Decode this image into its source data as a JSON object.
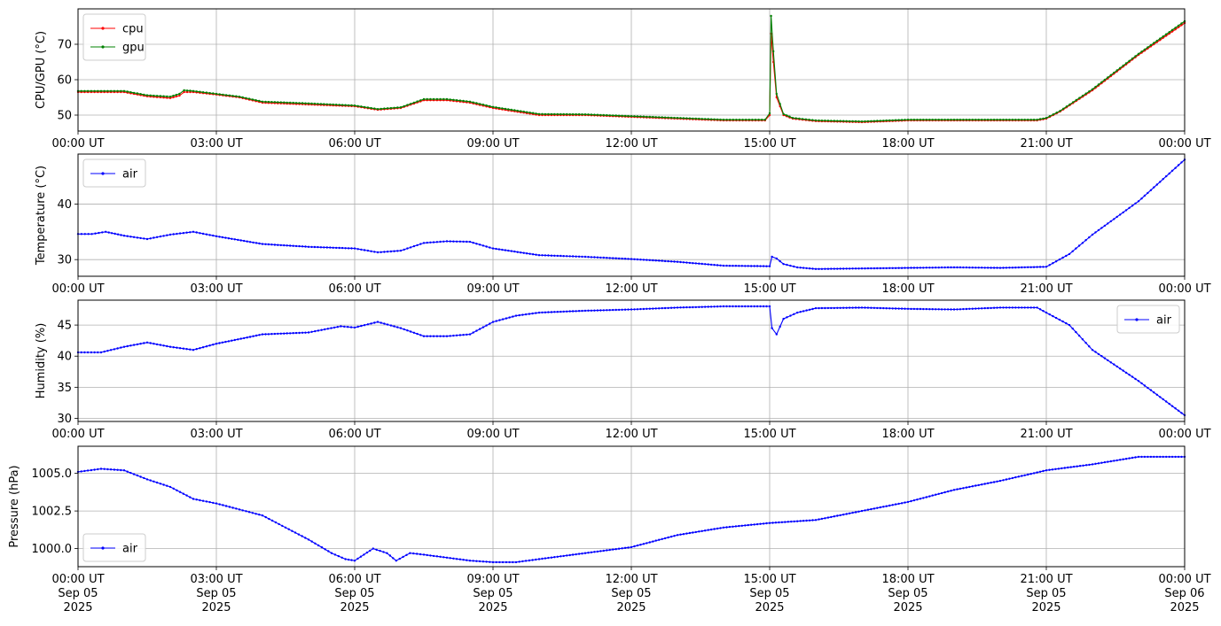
{
  "x_ticks": [
    "00:00 UT",
    "03:00 UT",
    "06:00 UT",
    "09:00 UT",
    "12:00 UT",
    "15:00 UT",
    "18:00 UT",
    "21:00 UT",
    "00:00 UT"
  ],
  "x_date_lines": [
    "Sep 05",
    "Sep 05",
    "Sep 05",
    "Sep 05",
    "Sep 05",
    "Sep 05",
    "Sep 05",
    "Sep 05",
    "Sep 06"
  ],
  "x_year_lines": [
    "2025",
    "2025",
    "2025",
    "2025",
    "2025",
    "2025",
    "2025",
    "2025",
    "2025"
  ],
  "colors": {
    "cpu": "#ff0000",
    "gpu": "#008000",
    "air": "#0000ff",
    "grid": "#b0b0b0"
  },
  "chart_data": [
    {
      "type": "line",
      "ylabel": "CPU/GPU (°C)",
      "xlim": [
        "2025-09-05 00:00",
        "2025-09-06 00:00"
      ],
      "ylim": [
        45.5,
        80
      ],
      "yticks": [
        50,
        60,
        70
      ],
      "grid": true,
      "legend": "top-left",
      "x_hours": [
        0,
        0.5,
        1,
        1.5,
        2,
        2.2,
        2.3,
        2.5,
        3,
        3.5,
        4,
        5,
        6,
        6.5,
        7,
        7.5,
        8,
        8.5,
        9,
        10,
        11,
        12,
        13,
        14,
        14.9,
        15,
        15.03,
        15.08,
        15.15,
        15.3,
        15.5,
        16,
        17,
        18,
        19,
        20,
        20.8,
        21,
        21.3,
        22,
        23,
        24
      ],
      "series": [
        {
          "name": "cpu",
          "values": [
            56.5,
            56.5,
            56.5,
            55.3,
            54.8,
            55.5,
            56.5,
            56.5,
            55.8,
            55,
            53.5,
            53,
            52.5,
            51.5,
            52,
            54.2,
            54.2,
            53.5,
            52,
            50,
            50,
            49.5,
            49,
            48.5,
            48.5,
            50,
            73,
            65,
            55,
            50,
            49,
            48.3,
            48,
            48.5,
            48.5,
            48.5,
            48.5,
            49,
            51,
            57,
            67,
            76
          ]
        },
        {
          "name": "gpu",
          "values": [
            56.8,
            56.8,
            56.8,
            55.6,
            55.2,
            56,
            57,
            56.8,
            56,
            55.2,
            53.8,
            53.3,
            52.7,
            51.7,
            52.2,
            54.5,
            54.5,
            53.8,
            52.3,
            50.3,
            50.2,
            49.7,
            49.2,
            48.7,
            48.7,
            50.5,
            78,
            68,
            56,
            50.3,
            49.2,
            48.5,
            48.2,
            48.7,
            48.7,
            48.7,
            48.7,
            49.2,
            51.2,
            57.3,
            67.3,
            76.5
          ]
        }
      ]
    },
    {
      "type": "line",
      "ylabel": "Temperature (°C)",
      "xlim": [
        "2025-09-05 00:00",
        "2025-09-06 00:00"
      ],
      "ylim": [
        27,
        49
      ],
      "yticks": [
        30,
        40
      ],
      "grid": true,
      "legend": "top-left",
      "x_hours": [
        0,
        0.3,
        0.6,
        1,
        1.5,
        2,
        2.5,
        3,
        4,
        5,
        6,
        6.5,
        7,
        7.5,
        8,
        8.5,
        9,
        10,
        11,
        12,
        13,
        14,
        15,
        15.05,
        15.15,
        15.3,
        15.6,
        16,
        17,
        18,
        19,
        20,
        21,
        21.5,
        22,
        23,
        24
      ],
      "series": [
        {
          "name": "air",
          "values": [
            34.6,
            34.6,
            35,
            34.3,
            33.7,
            34.5,
            35,
            34.2,
            32.8,
            32.3,
            32,
            31.3,
            31.6,
            33,
            33.3,
            33.2,
            32,
            30.8,
            30.5,
            30.1,
            29.6,
            28.9,
            28.8,
            30.5,
            30.2,
            29.2,
            28.6,
            28.3,
            28.4,
            28.5,
            28.6,
            28.5,
            28.7,
            31,
            34.5,
            40.5,
            48
          ]
        }
      ]
    },
    {
      "type": "line",
      "ylabel": "Humidity (%)",
      "xlim": [
        "2025-09-05 00:00",
        "2025-09-06 00:00"
      ],
      "ylim": [
        29.5,
        49
      ],
      "yticks": [
        30,
        35,
        40,
        45
      ],
      "grid": true,
      "legend": "top-right",
      "x_hours": [
        0,
        0.5,
        1,
        1.5,
        2,
        2.5,
        3,
        4,
        5,
        5.7,
        6,
        6.5,
        7,
        7.5,
        8,
        8.5,
        9,
        9.5,
        10,
        11,
        12,
        13,
        14,
        15,
        15.05,
        15.15,
        15.3,
        15.6,
        16,
        17,
        18,
        19,
        20,
        20.8,
        21,
        21.5,
        22,
        23,
        24
      ],
      "series": [
        {
          "name": "air",
          "values": [
            40.6,
            40.6,
            41.5,
            42.2,
            41.5,
            41,
            42,
            43.5,
            43.8,
            44.8,
            44.6,
            45.5,
            44.5,
            43.2,
            43.2,
            43.5,
            45.5,
            46.5,
            47,
            47.3,
            47.5,
            47.8,
            48,
            48,
            44.5,
            43.5,
            46,
            47,
            47.7,
            47.8,
            47.6,
            47.5,
            47.8,
            47.8,
            47,
            45,
            41,
            36,
            30.5
          ]
        }
      ]
    },
    {
      "type": "line",
      "ylabel": "Pressure (hPa)",
      "xlim": [
        "2025-09-05 00:00",
        "2025-09-06 00:00"
      ],
      "ylim": [
        998.8,
        1006.8
      ],
      "yticks": [
        1000.0,
        1002.5,
        1005.0
      ],
      "yticklabels": [
        "1000.0",
        "1002.5",
        "1005.0"
      ],
      "grid": true,
      "legend": "bottom-left",
      "x_hours": [
        0,
        0.5,
        1,
        1.5,
        2,
        2.5,
        3,
        3.5,
        4,
        4.5,
        5,
        5.5,
        5.8,
        6,
        6.4,
        6.7,
        6.9,
        7.2,
        7.5,
        8,
        8.5,
        9,
        9.5,
        10,
        11,
        12,
        13,
        14,
        15,
        16,
        17,
        18,
        19,
        20,
        21,
        22,
        23,
        24
      ],
      "series": [
        {
          "name": "air",
          "values": [
            1005.1,
            1005.3,
            1005.2,
            1004.6,
            1004.1,
            1003.3,
            1003,
            1002.6,
            1002.2,
            1001.4,
            1000.6,
            999.7,
            999.3,
            999.2,
            1000,
            999.7,
            999.2,
            999.7,
            999.6,
            999.4,
            999.2,
            999.1,
            999.1,
            999.3,
            999.7,
            1000.1,
            1000.9,
            1001.4,
            1001.7,
            1001.9,
            1002.5,
            1003.1,
            1003.9,
            1004.5,
            1005.2,
            1005.6,
            1006.1,
            1006.1
          ]
        }
      ]
    }
  ]
}
